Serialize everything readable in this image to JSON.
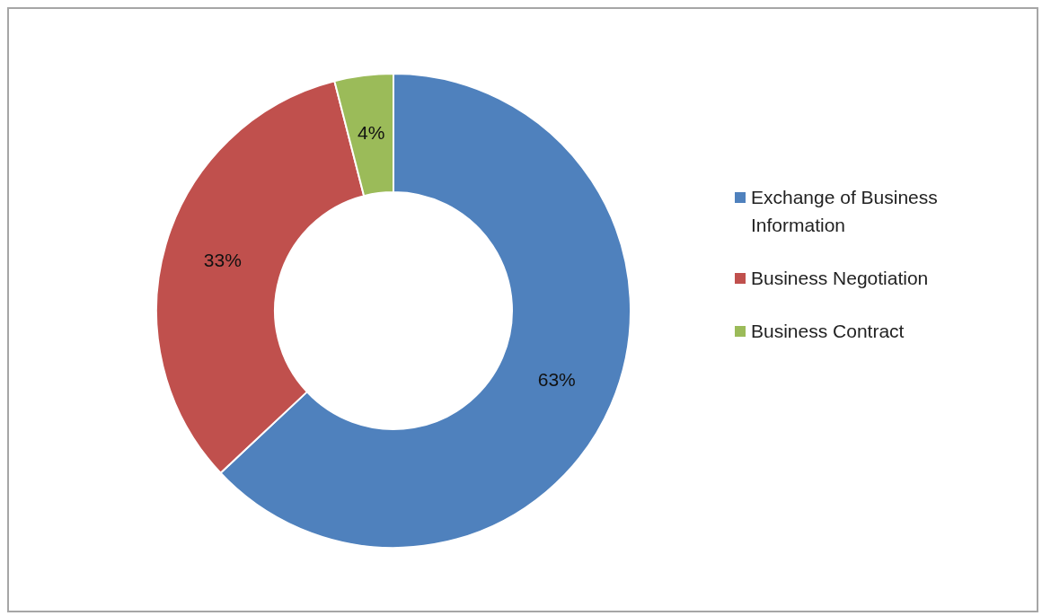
{
  "chart_data": {
    "type": "donut",
    "categories": [
      "Exchange of Business Information",
      "Business Negotiation",
      "Business Contract"
    ],
    "values": [
      63,
      33,
      4
    ],
    "colors": [
      "#4f81bd",
      "#c0504d",
      "#9bbb59"
    ],
    "value_labels": [
      "63%",
      "33%",
      "4%"
    ],
    "legend": "right"
  }
}
